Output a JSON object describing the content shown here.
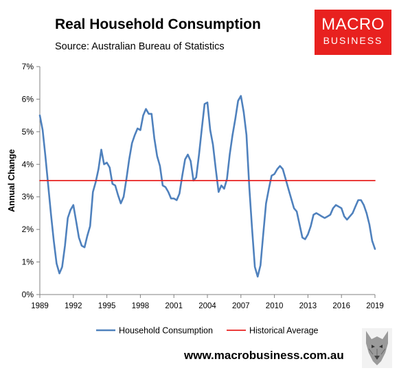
{
  "title": "Real Household Consumption",
  "subtitle": "Source: Australian Bureau of Statistics",
  "logo": {
    "line1": "MACRO",
    "line2": "BUSINESS",
    "color": "#e8211f"
  },
  "footer": "www.macrobusiness.com.au",
  "watermark_icon": "wolf-icon",
  "chart_data": {
    "type": "line",
    "ylabel": "Annual Change",
    "xlabel": "",
    "ylim": [
      0,
      7
    ],
    "yticks": [
      0,
      1,
      2,
      3,
      4,
      5,
      6,
      7
    ],
    "ytick_labels": [
      "0%",
      "1%",
      "2%",
      "3%",
      "4%",
      "5%",
      "6%",
      "7%"
    ],
    "xlim": [
      1989,
      2019
    ],
    "xticks": [
      1989,
      1992,
      1995,
      1998,
      2001,
      2004,
      2007,
      2010,
      2013,
      2016,
      2019
    ],
    "xtick_labels": [
      "1989",
      "1992",
      "1995",
      "1998",
      "2001",
      "2004",
      "2007",
      "2010",
      "2013",
      "2016",
      "2019"
    ],
    "grid": false,
    "legend": "bottom",
    "series": [
      {
        "name": "Household Consumption",
        "color": "#4f81bd",
        "x": [
          1989,
          1989.25,
          1989.5,
          1989.75,
          1990,
          1990.25,
          1990.5,
          1990.75,
          1991,
          1991.25,
          1991.5,
          1991.75,
          1992,
          1992.25,
          1992.5,
          1992.75,
          1993,
          1993.25,
          1993.5,
          1993.75,
          1994,
          1994.25,
          1994.5,
          1994.75,
          1995,
          1995.25,
          1995.5,
          1995.75,
          1996,
          1996.25,
          1996.5,
          1996.75,
          1997,
          1997.25,
          1997.5,
          1997.75,
          1998,
          1998.25,
          1998.5,
          1998.75,
          1999,
          1999.25,
          1999.5,
          1999.75,
          2000,
          2000.25,
          2000.5,
          2000.75,
          2001,
          2001.25,
          2001.5,
          2001.75,
          2002,
          2002.25,
          2002.5,
          2002.75,
          2003,
          2003.25,
          2003.5,
          2003.75,
          2004,
          2004.25,
          2004.5,
          2004.75,
          2005,
          2005.25,
          2005.5,
          2005.75,
          2006,
          2006.25,
          2006.5,
          2006.75,
          2007,
          2007.25,
          2007.5,
          2007.75,
          2008,
          2008.25,
          2008.5,
          2008.75,
          2009,
          2009.25,
          2009.5,
          2009.75,
          2010,
          2010.25,
          2010.5,
          2010.75,
          2011,
          2011.25,
          2011.5,
          2011.75,
          2012,
          2012.25,
          2012.5,
          2012.75,
          2013,
          2013.25,
          2013.5,
          2013.75,
          2014,
          2014.25,
          2014.5,
          2014.75,
          2015,
          2015.25,
          2015.5,
          2015.75,
          2016,
          2016.25,
          2016.5,
          2016.75,
          2017,
          2017.25,
          2017.5,
          2017.75,
          2018,
          2018.25,
          2018.5,
          2018.75,
          2019
        ],
        "values": [
          5.5,
          5.05,
          4.25,
          3.35,
          2.45,
          1.65,
          0.95,
          0.65,
          0.85,
          1.5,
          2.35,
          2.6,
          2.75,
          2.25,
          1.75,
          1.5,
          1.45,
          1.8,
          2.1,
          3.15,
          3.45,
          3.85,
          4.45,
          4.0,
          4.05,
          3.9,
          3.4,
          3.35,
          3.05,
          2.8,
          3.0,
          3.55,
          4.15,
          4.65,
          4.9,
          5.1,
          5.05,
          5.5,
          5.7,
          5.55,
          5.55,
          4.8,
          4.25,
          3.95,
          3.35,
          3.3,
          3.15,
          2.95,
          2.95,
          2.9,
          3.1,
          3.65,
          4.15,
          4.3,
          4.1,
          3.5,
          3.6,
          4.3,
          5.1,
          5.85,
          5.9,
          5.05,
          4.6,
          3.85,
          3.15,
          3.35,
          3.25,
          3.55,
          4.3,
          4.9,
          5.4,
          5.95,
          6.1,
          5.6,
          4.9,
          3.3,
          2.0,
          0.85,
          0.55,
          0.9,
          1.85,
          2.8,
          3.25,
          3.65,
          3.7,
          3.85,
          3.95,
          3.85,
          3.55,
          3.25,
          2.95,
          2.65,
          2.55,
          2.15,
          1.75,
          1.7,
          1.85,
          2.1,
          2.45,
          2.5,
          2.45,
          2.4,
          2.35,
          2.4,
          2.45,
          2.65,
          2.75,
          2.7,
          2.65,
          2.4,
          2.3,
          2.4,
          2.5,
          2.7,
          2.9,
          2.9,
          2.75,
          2.5,
          2.15,
          1.65,
          1.4
        ]
      },
      {
        "name": "Historical Average",
        "color": "#e8211f",
        "x": [
          1989,
          2019
        ],
        "values": [
          3.5,
          3.5
        ]
      }
    ]
  }
}
